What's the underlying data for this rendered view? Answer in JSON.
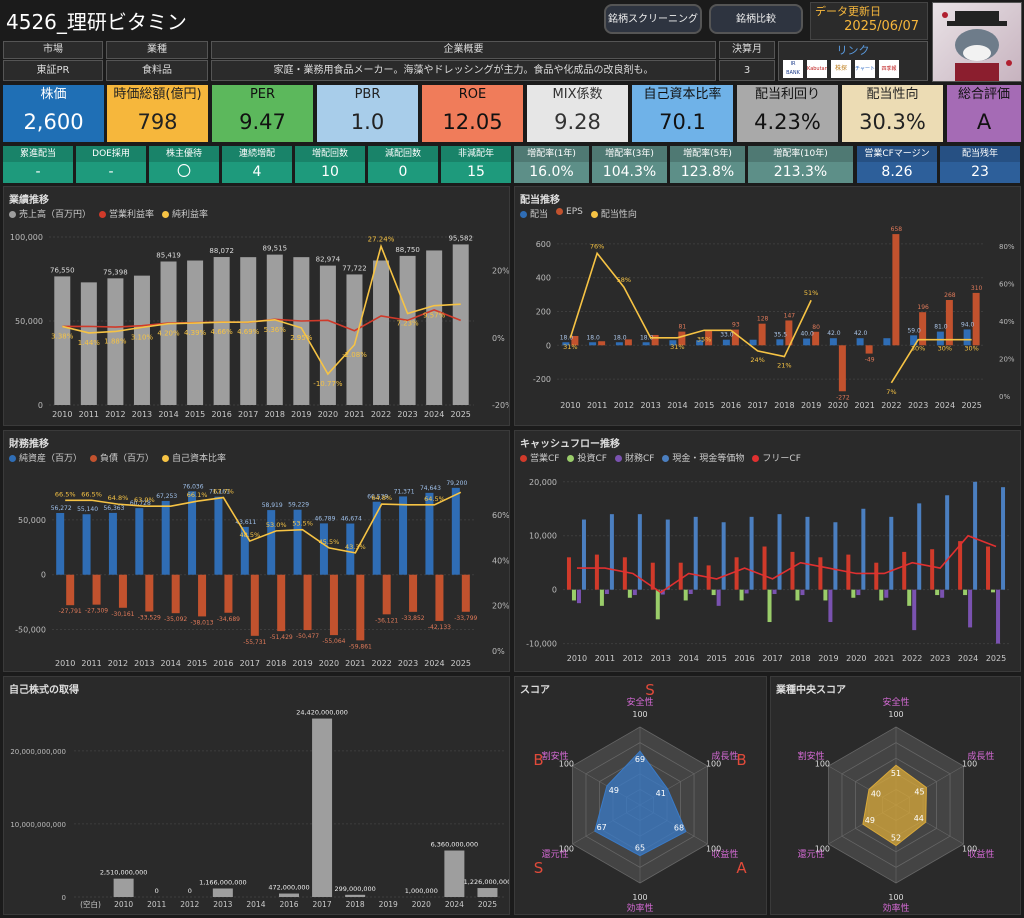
{
  "header": {
    "title": "4526_理研ビタミン",
    "btn_screening": "銘柄スクリーニング",
    "btn_compare": "銘柄比較",
    "update_label": "データ更新日",
    "update_date": "2025/06/07"
  },
  "info": {
    "market_label": "市場",
    "market": "東証PR",
    "industry_label": "業種",
    "industry": "食料品",
    "overview_label": "企業概要",
    "overview": "家庭・業務用食品メーカー。海藻やドレッシングが主力。食品や化成品の改良剤も。",
    "fiscal_label": "決算月",
    "fiscal": "3",
    "link_label": "リンク",
    "link_badges": [
      "IR BANK",
      "Kabutan",
      "株探",
      "チャート",
      "四季報"
    ]
  },
  "kpis": [
    {
      "label": "株価",
      "value": "2,600",
      "bg": "#1f6fb5",
      "lab_bg": "#2a79bd",
      "color": "#fff"
    },
    {
      "label": "時価総額(億円)",
      "value": "798",
      "bg": "#f6b73c",
      "lab_bg": "#f6b73c",
      "color": "#222"
    },
    {
      "label": "PER",
      "value": "9.47",
      "bg": "#5cb85c",
      "lab_bg": "#5cb85c",
      "color": "#111"
    },
    {
      "label": "PBR",
      "value": "1.0",
      "bg": "#a8cdea",
      "lab_bg": "#a8cdea",
      "color": "#222"
    },
    {
      "label": "ROE",
      "value": "12.05",
      "bg": "#f07c5a",
      "lab_bg": "#f07c5a",
      "color": "#111"
    },
    {
      "label": "MIX係数",
      "value": "9.28",
      "bg": "#e6e6e6",
      "lab_bg": "#e6e6e6",
      "color": "#333"
    },
    {
      "label": "自己資本比率",
      "value": "70.1",
      "bg": "#6fb2e8",
      "lab_bg": "#6fb2e8",
      "color": "#111"
    },
    {
      "label": "配当利回り",
      "value": "4.23%",
      "bg": "#a9a9a9",
      "lab_bg": "#a9a9a9",
      "color": "#111"
    },
    {
      "label": "配当性向",
      "value": "30.3%",
      "bg": "#ecdcb4",
      "lab_bg": "#ecdcb4",
      "color": "#222"
    },
    {
      "label": "総合評価",
      "value": "A",
      "bg": "#a56bb5",
      "lab_bg": "#a56bb5",
      "color": "#111"
    }
  ],
  "stats": [
    {
      "label": "累進配当",
      "value": "-",
      "bg": "#1e9a7c"
    },
    {
      "label": "DOE採用",
      "value": "-",
      "bg": "#1e9a7c"
    },
    {
      "label": "株主優待",
      "value": "〇",
      "bg": "#1e9a7c"
    },
    {
      "label": "連続増配",
      "value": "4",
      "bg": "#1e9a7c"
    },
    {
      "label": "増配回数",
      "value": "10",
      "bg": "#1e9a7c"
    },
    {
      "label": "減配回数",
      "value": "0",
      "bg": "#1e9a7c"
    },
    {
      "label": "非減配年",
      "value": "15",
      "bg": "#1e9a7c"
    },
    {
      "label": "増配率(1年)",
      "value": "16.0%",
      "bg": "#5d8f88"
    },
    {
      "label": "増配率(3年)",
      "value": "104.3%",
      "bg": "#5d8f88"
    },
    {
      "label": "増配率(5年)",
      "value": "123.8%",
      "bg": "#5d8f88"
    },
    {
      "label": "増配率(10年)",
      "value": "213.3%",
      "bg": "#5d8f88"
    },
    {
      "label": "営業CFマージン",
      "value": "8.26",
      "bg": "#2d5f9a"
    },
    {
      "label": "配当残年",
      "value": "23",
      "bg": "#2d5f9a"
    }
  ],
  "colors": {
    "gray": "#9e9e9e",
    "red": "#d03a2a",
    "orange": "#c2522e",
    "yellow": "#f6c344",
    "blue": "#2f6db5",
    "green": "#9acd6a",
    "purple": "#7a52b0",
    "cashblue": "#4b7fc0"
  },
  "chart_data": [
    {
      "id": "perf",
      "type": "bar",
      "title": "業績推移",
      "legend": [
        "売上高（百万円）",
        "営業利益率",
        "純利益率"
      ],
      "categories": [
        "2010",
        "2011",
        "2012",
        "2013",
        "2014",
        "2015",
        "2016",
        "2017",
        "2018",
        "2019",
        "2020",
        "2021",
        "2022",
        "2023",
        "2024",
        "2025"
      ],
      "series": [
        {
          "name": "売上高（百万円）",
          "values": [
            76550,
            73000,
            75398,
            77000,
            85419,
            86000,
            88072,
            88000,
            89515,
            88000,
            82974,
            77722,
            86000,
            88750,
            92000,
            95582
          ]
        },
        {
          "name": "営業利益率",
          "values": [
            3.38,
            3.4,
            3.2,
            3.6,
            4.4,
            4.5,
            4.7,
            4.6,
            5.5,
            5.0,
            5.2,
            2.1,
            6.5,
            5.2,
            8.3,
            5.2
          ]
        },
        {
          "name": "純利益率",
          "values": [
            3.38,
            1.44,
            1.88,
            3.1,
            4.2,
            4.39,
            4.66,
            4.69,
            5.36,
            2.95,
            -10.77,
            -2.08,
            27.24,
            7.23,
            9.57,
            10.0
          ]
        }
      ],
      "bar_labels": [
        "76,550",
        "",
        "75,398",
        "",
        "85,419",
        "",
        "88,072",
        "",
        "89,515",
        "",
        "82,974",
        "77,722",
        "",
        "88,750",
        "",
        "95,582"
      ],
      "net_labels": [
        "3.38%",
        "1.44%",
        "1.88%",
        "3.10%",
        "4.20%",
        "4.39%",
        "4.66%",
        "4.69%",
        "5.36%",
        "2.95%",
        "-10.77%",
        "-2.08%",
        "27.24%",
        "7.23%",
        "9.57%",
        ""
      ],
      "ylim": [
        0,
        100000
      ],
      "y2lim": [
        -20,
        30
      ],
      "yticks": [
        "0",
        "50,000",
        "100,000"
      ],
      "y2ticks": [
        "-20%",
        "0%",
        "20%"
      ]
    },
    {
      "id": "div",
      "type": "bar",
      "title": "配当推移",
      "legend": [
        "配当",
        "EPS",
        "配当性向"
      ],
      "categories": [
        "2010",
        "2011",
        "2012",
        "2013",
        "2014",
        "2015",
        "2016",
        "2017",
        "2018",
        "2019",
        "2020",
        "2021",
        "2022",
        "2023",
        "2024",
        "2025"
      ],
      "series": [
        {
          "name": "配当",
          "values": [
            18,
            18,
            18,
            18,
            30,
            30,
            33,
            33,
            35.5,
            40,
            42,
            42,
            42,
            59,
            81,
            94
          ]
        },
        {
          "name": "EPS",
          "values": [
            55,
            24,
            35,
            61,
            81,
            85,
            93,
            128,
            147,
            80,
            -272,
            -49,
            658,
            196,
            268,
            310
          ]
        },
        {
          "name": "配当性向",
          "values": [
            31,
            76,
            58,
            31,
            31,
            35,
            35,
            24,
            21,
            51,
            null,
            null,
            7,
            30,
            30,
            30
          ]
        }
      ],
      "div_labels": [
        "18.0",
        "18.0",
        "18.0",
        "18.0",
        "",
        "",
        "33.0",
        "",
        "35.5",
        "40.0",
        "42.0",
        "42.0",
        "",
        "59.0",
        "81.0",
        "94.0"
      ],
      "eps_labels": [
        "",
        "",
        "",
        "",
        "81",
        "",
        "93",
        "128",
        "147",
        "80",
        "-272",
        "-49",
        "658",
        "196",
        "268",
        "310"
      ],
      "ratio_labels": [
        "31%",
        "76%",
        "58%",
        "",
        "31%",
        "35%",
        "",
        "24%",
        "21%",
        "51%",
        "",
        "",
        "7%",
        "30%",
        "30%",
        "30%"
      ],
      "ylim": [
        -300,
        700
      ],
      "yticks": [
        "-200",
        "0",
        "200",
        "400",
        "600"
      ],
      "y2ticks": [
        "0%",
        "20%",
        "40%",
        "60%",
        "80%"
      ]
    },
    {
      "id": "fin",
      "type": "bar",
      "title": "財務推移",
      "legend": [
        "純資産（百万）",
        "負債（百万）",
        "自己資本比率"
      ],
      "categories": [
        "2010",
        "2011",
        "2012",
        "2013",
        "2014",
        "2015",
        "2016",
        "2017",
        "2018",
        "2019",
        "2020",
        "2021",
        "2022",
        "2023",
        "2024",
        "2025"
      ],
      "series": [
        {
          "name": "純資産（百万）",
          "values": [
            56272,
            55140,
            56363,
            60728,
            67253,
            76036,
            71161,
            43611,
            58919,
            59229,
            46789,
            46674,
            66539,
            71371,
            74643,
            79200
          ]
        },
        {
          "name": "負債（百万）",
          "values": [
            -27791,
            -27309,
            -30161,
            -33529,
            -35092,
            -38013,
            -34689,
            -55731,
            -51429,
            -50477,
            -55064,
            -59861,
            -36121,
            -33852,
            -42133,
            -33799
          ]
        },
        {
          "name": "自己資本比率",
          "values": [
            66.5,
            66.5,
            64.8,
            63.9,
            63.9,
            66.1,
            67.7,
            48.5,
            53.0,
            53.5,
            45.5,
            43.3,
            64.8,
            64.5,
            64.5,
            70.0
          ]
        }
      ],
      "pos_labels": [
        "56,272",
        "55,140",
        "56,363",
        "60,728",
        "67,253",
        "76,036",
        "71,161",
        "43,611",
        "58,919",
        "59,229",
        "46,789",
        "46,674",
        "66,539",
        "71,371",
        "74,643",
        "79,200"
      ],
      "neg_labels": [
        "-27,791",
        "-27,309",
        "-30,161",
        "-33,529",
        "-35,092",
        "-38,013",
        "-34,689",
        "-55,731",
        "-51,429",
        "-50,477",
        "-55,064",
        "-59,861",
        "-36,121",
        "-33,852",
        "-42,133",
        "-33,799"
      ],
      "ratio_labels": [
        "66.5%",
        "66.5%",
        "64.8%",
        "63.9%",
        "",
        "66.1%",
        "67.7%",
        "48.5%",
        "53.0%",
        "53.5%",
        "45.5%",
        "43.3%",
        "64.8%",
        "",
        "64.5%",
        ""
      ],
      "ylim": [
        -65000,
        90000
      ],
      "yticks": [
        "-50,000",
        "0",
        "50,000"
      ],
      "y2ticks": [
        "0%",
        "20%",
        "40%",
        "60%"
      ]
    },
    {
      "id": "cf",
      "type": "bar",
      "title": "キャッシュフロー推移",
      "legend": [
        "営業CF",
        "投資CF",
        "財務CF",
        "現金・現金等価物",
        "フリーCF"
      ],
      "categories": [
        "2010",
        "2011",
        "2012",
        "2013",
        "2014",
        "2015",
        "2016",
        "2017",
        "2018",
        "2019",
        "2020",
        "2021",
        "2022",
        "2023",
        "2024",
        "2025"
      ],
      "series": [
        {
          "name": "営業CF",
          "values": [
            6000,
            6500,
            6000,
            5000,
            5000,
            4500,
            6000,
            8000,
            7000,
            6000,
            6500,
            5000,
            7000,
            7500,
            9000,
            8000
          ]
        },
        {
          "name": "投資CF",
          "values": [
            -2000,
            -3000,
            -1500,
            -5500,
            -2000,
            -1000,
            -2000,
            -6000,
            -2000,
            -2000,
            -1500,
            -2000,
            -3000,
            -1000,
            -1000,
            -500
          ]
        },
        {
          "name": "財務CF",
          "values": [
            -2500,
            -800,
            -1000,
            -900,
            -800,
            -3000,
            -700,
            -800,
            -1000,
            -6000,
            -1000,
            -1500,
            -7500,
            -1500,
            -7000,
            -10000
          ]
        },
        {
          "name": "現金・現金等価物",
          "values": [
            13000,
            14000,
            14000,
            13000,
            13500,
            12500,
            13500,
            14000,
            13500,
            12500,
            15000,
            13500,
            16000,
            17500,
            20000,
            19000
          ]
        },
        {
          "name": "フリーCF",
          "values": [
            4000,
            4000,
            3000,
            -500,
            3000,
            2000,
            4000,
            2000,
            5000,
            4000,
            3000,
            3000,
            5000,
            4000,
            10000,
            8000
          ]
        }
      ],
      "ylim": [
        -11000,
        22000
      ],
      "yticks": [
        "-10,000",
        "0",
        "10,000",
        "20,000"
      ]
    },
    {
      "id": "buyback",
      "type": "bar",
      "title": "自己株式の取得",
      "categories": [
        "(空白)",
        "2010",
        "2011",
        "2012",
        "2013",
        "2014",
        "2016",
        "2017",
        "2018",
        "2019",
        "2020",
        "2024",
        "2025"
      ],
      "values": [
        0,
        2510000000,
        0,
        0,
        1166000000,
        0,
        472000000,
        24420000000,
        299000000,
        0,
        1000000,
        6360000000,
        1226000000
      ],
      "labels": [
        "",
        "2,510,000,000",
        "0",
        "0",
        "1,166,000,000",
        "",
        "472,000,000",
        "24,420,000,000",
        "299,000,000",
        "",
        "1,000,000",
        "6,360,000,000",
        "1,226,000,000"
      ],
      "ylim": [
        0,
        26000000000
      ],
      "yticks": [
        "0",
        "10,000,000,000",
        "20,000,000,000"
      ]
    },
    {
      "id": "score",
      "type": "radar",
      "title": "スコア",
      "axes": [
        "安全性",
        "成長性",
        "収益性",
        "効率性",
        "還元性",
        "割安性"
      ],
      "values": [
        69,
        41,
        68,
        65,
        67,
        49
      ],
      "max": 100,
      "max_label": "100",
      "grades": [
        "S",
        "B",
        "A",
        "A",
        "S",
        "B"
      ],
      "color": "#3a7bc8"
    },
    {
      "id": "industry",
      "type": "radar",
      "title": "業種中央スコア",
      "axes": [
        "安全性",
        "成長性",
        "収益性",
        "効率性",
        "還元性",
        "割安性"
      ],
      "values": [
        51,
        45,
        44,
        52,
        49,
        40
      ],
      "max": 100,
      "max_label": "100",
      "color": "#d9a93a"
    }
  ]
}
